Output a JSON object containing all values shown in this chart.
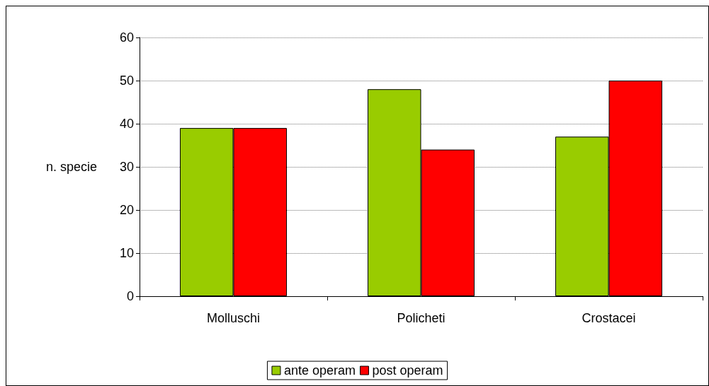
{
  "chart_data": {
    "type": "bar",
    "ylabel": "n. specie",
    "categories": [
      "Molluschi",
      "Policheti",
      "Crostacei"
    ],
    "series": [
      {
        "name": "ante operam",
        "color": "#99cc00",
        "values": [
          39,
          48,
          37
        ]
      },
      {
        "name": "post operam",
        "color": "#ff0000",
        "values": [
          39,
          34,
          50
        ]
      }
    ],
    "ylim": [
      0,
      60
    ],
    "yticks": [
      0,
      10,
      20,
      30,
      40,
      50,
      60
    ],
    "grid": "y",
    "legend": "bottom"
  }
}
